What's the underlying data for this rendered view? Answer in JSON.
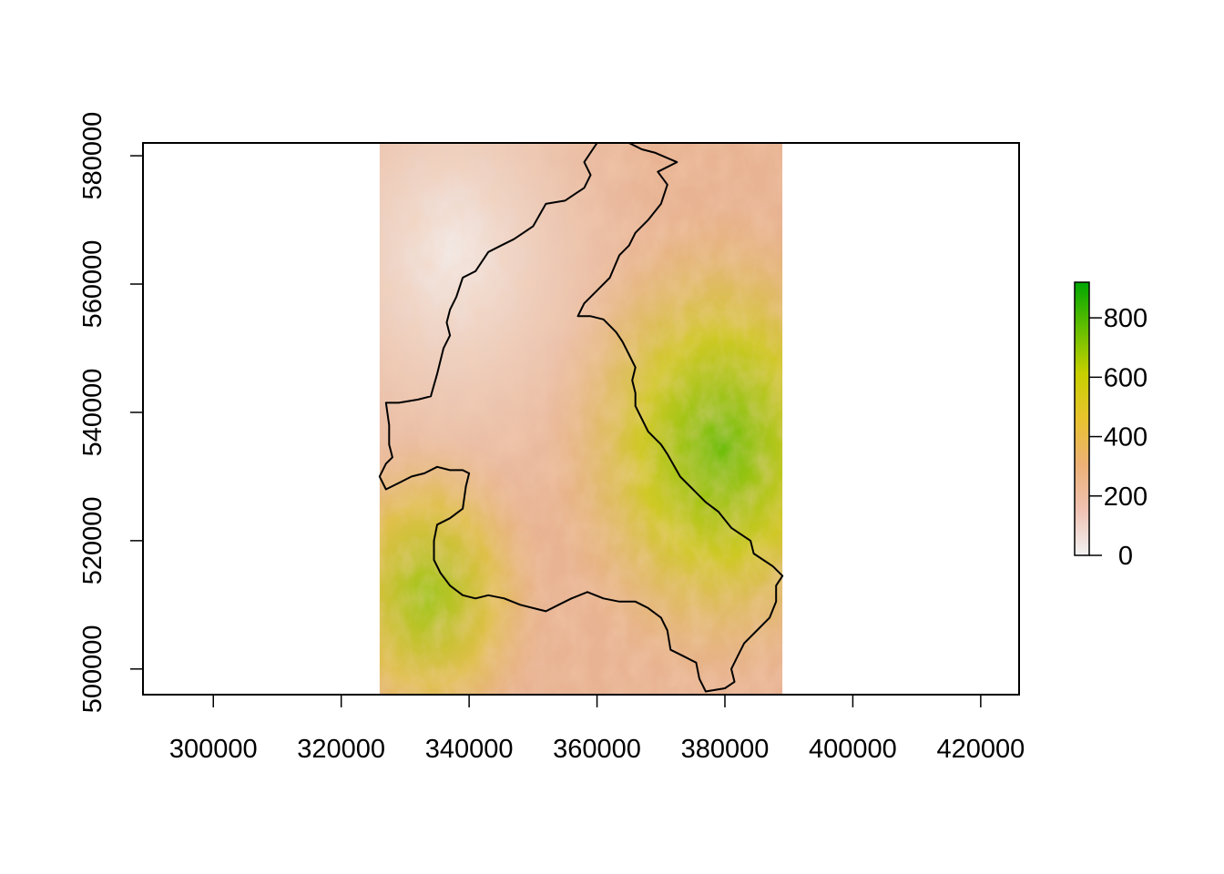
{
  "chart_data": {
    "type": "heatmap",
    "title": "",
    "xlabel": "",
    "ylabel": "",
    "xlim": [
      289000,
      426000
    ],
    "ylim": [
      496000,
      582000
    ],
    "x_ticks": [
      {
        "value": 300000,
        "label": "300000"
      },
      {
        "value": 320000,
        "label": "320000"
      },
      {
        "value": 340000,
        "label": "340000"
      },
      {
        "value": 360000,
        "label": "360000"
      },
      {
        "value": 380000,
        "label": "380000"
      },
      {
        "value": 400000,
        "label": "400000"
      },
      {
        "value": 420000,
        "label": "420000"
      }
    ],
    "y_ticks": [
      {
        "value": 500000,
        "label": "500000"
      },
      {
        "value": 520000,
        "label": "520000"
      },
      {
        "value": 540000,
        "label": "540000"
      },
      {
        "value": 560000,
        "label": "560000"
      },
      {
        "value": 580000,
        "label": "580000"
      }
    ],
    "raster_extent": {
      "xmin": 326000,
      "xmax": 389000,
      "ymin": 496000,
      "ymax": 582000
    },
    "legend": {
      "position": "right",
      "zlim": [
        0,
        920
      ],
      "ticks": [
        {
          "value": 0,
          "label": "0"
        },
        {
          "value": 200,
          "label": "200"
        },
        {
          "value": 400,
          "label": "400"
        },
        {
          "value": 600,
          "label": "600"
        },
        {
          "value": 800,
          "label": "800"
        }
      ],
      "colors": [
        "#F2F2F2",
        "#EFC2B3",
        "#ECB176",
        "#E8C32E",
        "#C7D000",
        "#63BE00",
        "#00A600"
      ]
    },
    "boundary_outline": [
      [
        360000,
        582000
      ],
      [
        359000,
        580500
      ],
      [
        358000,
        579000
      ],
      [
        359000,
        577000
      ],
      [
        358000,
        575000
      ],
      [
        355000,
        573000
      ],
      [
        352000,
        572500
      ],
      [
        350000,
        569000
      ],
      [
        347000,
        567000
      ],
      [
        345000,
        566000
      ],
      [
        343000,
        565000
      ],
      [
        341000,
        562000
      ],
      [
        339000,
        561000
      ],
      [
        338000,
        558000
      ],
      [
        337000,
        556000
      ],
      [
        336500,
        554000
      ],
      [
        337000,
        552000
      ],
      [
        336000,
        550000
      ],
      [
        335000,
        546000
      ],
      [
        334000,
        542500
      ],
      [
        332000,
        542000
      ],
      [
        329000,
        541500
      ],
      [
        327000,
        541500
      ],
      [
        327500,
        538000
      ],
      [
        327500,
        535000
      ],
      [
        328000,
        533000
      ],
      [
        327000,
        532000
      ],
      [
        326000,
        530000
      ],
      [
        327000,
        528000
      ],
      [
        329000,
        529000
      ],
      [
        331000,
        530000
      ],
      [
        333000,
        530500
      ],
      [
        335000,
        531500
      ],
      [
        337000,
        531000
      ],
      [
        339000,
        531000
      ],
      [
        340000,
        530500
      ],
      [
        339500,
        528500
      ],
      [
        339000,
        525000
      ],
      [
        337000,
        523500
      ],
      [
        335000,
        522500
      ],
      [
        334500,
        520000
      ],
      [
        334500,
        517000
      ],
      [
        335500,
        515000
      ],
      [
        337000,
        513000
      ],
      [
        339000,
        511500
      ],
      [
        341000,
        511000
      ],
      [
        343000,
        511500
      ],
      [
        345500,
        511000
      ],
      [
        348000,
        510000
      ],
      [
        350000,
        509500
      ],
      [
        352000,
        509000
      ],
      [
        354000,
        510000
      ],
      [
        356000,
        511000
      ],
      [
        358500,
        512000
      ],
      [
        361000,
        511000
      ],
      [
        363500,
        510500
      ],
      [
        366000,
        510500
      ],
      [
        368000,
        509500
      ],
      [
        370000,
        508000
      ],
      [
        371000,
        506000
      ],
      [
        371500,
        503000
      ],
      [
        373500,
        502000
      ],
      [
        375500,
        501000
      ],
      [
        376000,
        498500
      ],
      [
        377000,
        496500
      ],
      [
        380000,
        497000
      ],
      [
        381500,
        498000
      ],
      [
        381000,
        500000
      ],
      [
        382000,
        502000
      ],
      [
        383000,
        504000
      ],
      [
        385000,
        506000
      ],
      [
        387000,
        508000
      ],
      [
        388000,
        510500
      ],
      [
        388000,
        513000
      ],
      [
        389000,
        514500
      ],
      [
        387500,
        516000
      ],
      [
        386000,
        517000
      ],
      [
        384500,
        518000
      ],
      [
        384000,
        520000
      ],
      [
        381000,
        522000
      ],
      [
        379000,
        524500
      ],
      [
        377000,
        526000
      ],
      [
        375000,
        528000
      ],
      [
        373000,
        530000
      ],
      [
        371000,
        533500
      ],
      [
        370000,
        535000
      ],
      [
        368000,
        537000
      ],
      [
        367000,
        539000
      ],
      [
        366000,
        541000
      ],
      [
        366000,
        543000
      ],
      [
        365500,
        545000
      ],
      [
        366000,
        547000
      ],
      [
        365000,
        549000
      ],
      [
        364000,
        551000
      ],
      [
        363000,
        552500
      ],
      [
        362000,
        553500
      ],
      [
        361000,
        554500
      ],
      [
        359000,
        555000
      ],
      [
        357000,
        555000
      ],
      [
        358000,
        557000
      ],
      [
        360000,
        559000
      ],
      [
        362000,
        561000
      ],
      [
        363500,
        564500
      ],
      [
        365000,
        566000
      ],
      [
        366000,
        568000
      ],
      [
        368000,
        570000
      ],
      [
        370000,
        572500
      ],
      [
        371000,
        575500
      ],
      [
        369500,
        577500
      ],
      [
        372500,
        579000
      ],
      [
        369000,
        580500
      ],
      [
        367000,
        581000
      ],
      [
        365000,
        582000
      ],
      [
        360000,
        582000
      ]
    ]
  }
}
